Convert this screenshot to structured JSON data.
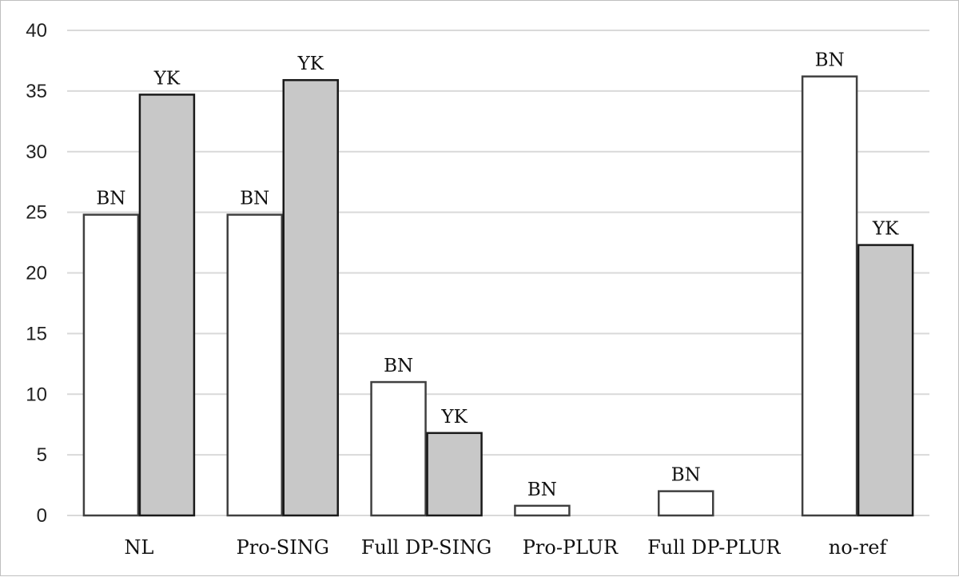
{
  "chart_data": {
    "type": "bar",
    "title": "",
    "xlabel": "",
    "ylabel": "",
    "ylim": [
      0,
      40
    ],
    "y_ticks": [
      0,
      5,
      10,
      15,
      20,
      25,
      30,
      35,
      40
    ],
    "grid": true,
    "legend": "none",
    "categories": [
      "NL",
      "Pro-SING",
      "Full DP-SING",
      "Pro-PLUR",
      "Full DP-PLUR",
      "no-ref"
    ],
    "series": [
      {
        "name": "BN",
        "color": "#ffffff",
        "values": [
          24.8,
          24.8,
          11.0,
          0.8,
          2.0,
          36.2
        ],
        "labels": [
          "BN",
          "BN",
          "BN",
          "BN",
          "BN",
          "BN"
        ]
      },
      {
        "name": "YK",
        "color": "#c8c8c8",
        "values": [
          34.7,
          35.9,
          6.8,
          0,
          0,
          22.3
        ],
        "labels": [
          "YK",
          "YK",
          "YK",
          "",
          "",
          "YK"
        ]
      }
    ]
  }
}
